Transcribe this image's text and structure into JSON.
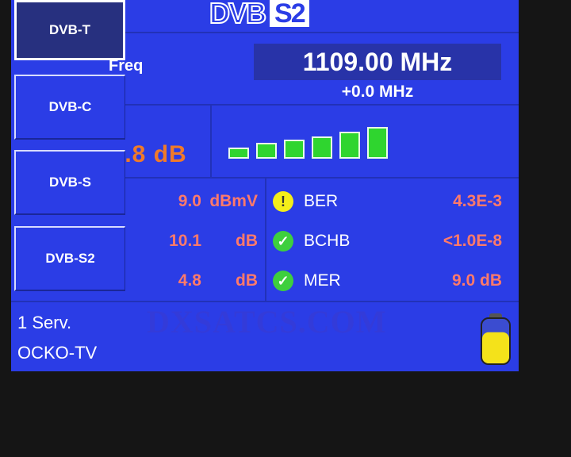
{
  "header": {
    "logo_dvb": "DVB",
    "logo_s2": "S2"
  },
  "mode_buttons": [
    {
      "label": "DVB-T",
      "selected": true
    },
    {
      "label": "DVB-C",
      "selected": false
    },
    {
      "label": "DVB-S",
      "selected": false
    },
    {
      "label": "DVB-S2",
      "selected": false
    }
  ],
  "freq": {
    "label": "Freq",
    "value": "1109.00 MHz",
    "offset": "+0.0 MHz"
  },
  "signal": {
    "cn_value": "..8 dB",
    "bars_total": 6,
    "bars_lit": 6,
    "bar_color": "#2fd52f"
  },
  "measurements": [
    {
      "value": "9.0",
      "unit": "dBmV",
      "status_icon": "warning-icon",
      "label": "BER",
      "reading": "4.3E-3"
    },
    {
      "value": "10.1",
      "unit": "dB",
      "status_icon": "check-icon",
      "label": "BCHB",
      "reading": "<1.0E-8"
    },
    {
      "value": "4.8",
      "unit": "dB",
      "status_icon": "check-icon",
      "label": "MER",
      "reading": "9.0 dB"
    }
  ],
  "footer": {
    "services": "1 Serv.",
    "channel": "OCKO-TV",
    "battery_level": 0.7,
    "battery_color": "#f4e21a"
  },
  "watermark": "DXSATCS.COM",
  "colors": {
    "panel": "#2b3de6",
    "value": "#ff7a6a",
    "accent": "#f07a2a"
  }
}
